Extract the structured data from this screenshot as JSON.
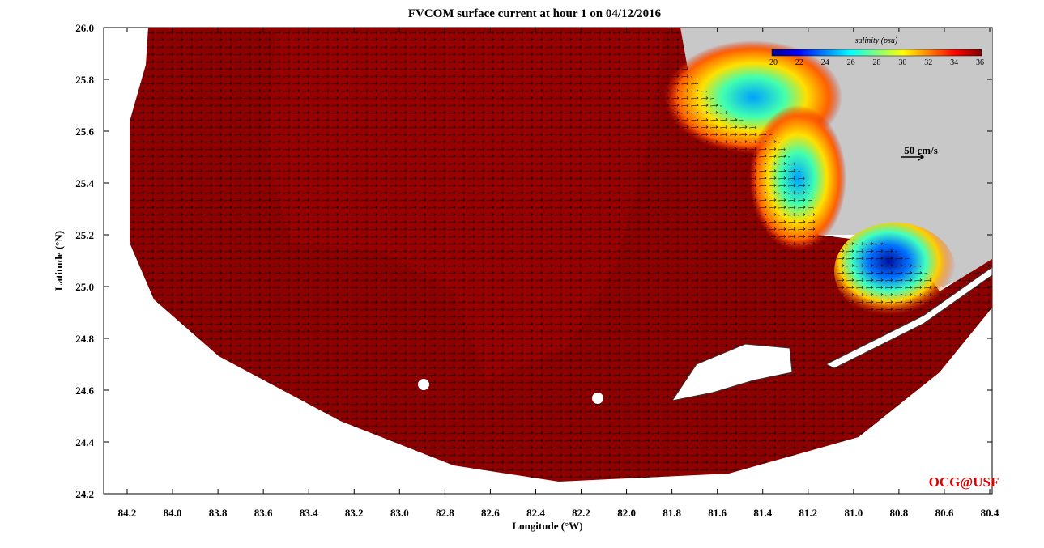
{
  "title": "FVCOM surface current at hour 1 on 04/12/2016",
  "x_axis": {
    "label": "Longitude (°W)",
    "ticks": [
      "84.2",
      "84.0",
      "83.8",
      "83.6",
      "83.4",
      "83.2",
      "83.0",
      "82.8",
      "82.6",
      "82.4",
      "82.2",
      "82.0",
      "81.8",
      "81.6",
      "81.4",
      "81.2",
      "81.0",
      "80.8",
      "80.6",
      "80.4"
    ]
  },
  "y_axis": {
    "label": "Latitude (°N)",
    "ticks": [
      "26.0",
      "25.8",
      "25.6",
      "25.4",
      "25.2",
      "25.0",
      "24.8",
      "24.6",
      "24.4",
      "24.2"
    ]
  },
  "colorbar": {
    "title": "salinity (psu)",
    "ticks": [
      20,
      22,
      24,
      26,
      28,
      30,
      32,
      34,
      36
    ]
  },
  "scale_arrow": "50 cm/s",
  "credit": "OCG@USF"
}
